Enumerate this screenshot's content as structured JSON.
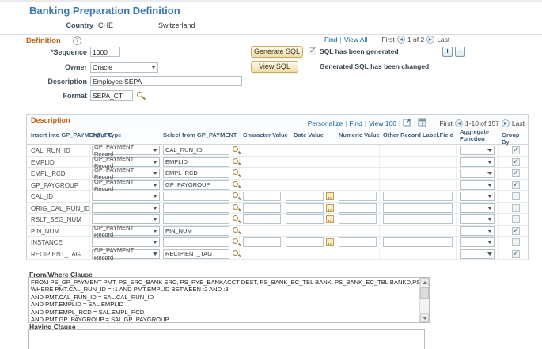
{
  "page": {
    "title": "Banking Preparation Definition"
  },
  "icons": {
    "help": "?",
    "add": "+",
    "remove": "−"
  },
  "separators": {
    "pipe": "|"
  },
  "country": {
    "label": "Country",
    "code": "CHE",
    "name": "Switzerland"
  },
  "definition": {
    "title": "Definition",
    "nav": {
      "find": "Find",
      "view_all": "View All",
      "first": "First",
      "position": "1 of 2",
      "last": "Last"
    },
    "sequence_label": "*Sequence",
    "sequence_value": "1000",
    "owner_label": "Owner",
    "owner_value": "Oracle",
    "description_label": "Description",
    "description_value": "Employee SEPA",
    "format_label": "Format",
    "format_value": "SEPA_CT",
    "generate_sql_button": "Generate SQL",
    "view_sql_button": "View SQL",
    "checkbox_sql_generated": {
      "label": "SQL has been generated",
      "checked": true
    },
    "checkbox_sql_changed": {
      "label": "Generated SQL has been changed",
      "checked": false
    }
  },
  "grid": {
    "tab": "Description",
    "toolbar": {
      "personalize": "Personalize",
      "find": "Find",
      "view": "View 100",
      "first": "First",
      "position": "1-10 of 157",
      "last": "Last"
    },
    "columns": [
      "Insert into GP_PAYMENT_FG",
      "Input Type",
      "Select from GP_PAYMENT",
      "Character Value",
      "Date Value",
      "Numeric Value",
      "Other Record Label.Field",
      "Aggregate Function",
      "Group By"
    ],
    "rows": [
      {
        "field": "CAL_RUN_ID",
        "input_type": "GP_PAYMENT Record",
        "select_from": "CAL_RUN_ID",
        "character_value": "",
        "date_value": "",
        "numeric_value": "",
        "other_record": "",
        "aggregate": "",
        "value_inputs": false,
        "group_by": true
      },
      {
        "field": "EMPLID",
        "input_type": "GP_PAYMENT Record",
        "select_from": "EMPLID",
        "character_value": "",
        "date_value": "",
        "numeric_value": "",
        "other_record": "",
        "aggregate": "",
        "value_inputs": false,
        "group_by": true
      },
      {
        "field": "EMPL_RCD",
        "input_type": "GP_PAYMENT Record",
        "select_from": "EMPL_RCD",
        "character_value": "",
        "date_value": "",
        "numeric_value": "",
        "other_record": "",
        "aggregate": "",
        "value_inputs": false,
        "group_by": true
      },
      {
        "field": "GP_PAYGROUP",
        "input_type": "GP_PAYMENT Record",
        "select_from": "GP_PAYGROUP",
        "character_value": "",
        "date_value": "",
        "numeric_value": "",
        "other_record": "",
        "aggregate": "",
        "value_inputs": false,
        "group_by": true
      },
      {
        "field": "CAL_ID",
        "input_type": "",
        "select_from": "",
        "character_value": "",
        "date_value": "",
        "numeric_value": "",
        "other_record": "",
        "aggregate": "",
        "value_inputs": true,
        "group_by": false
      },
      {
        "field": "ORIG_CAL_RUN_ID",
        "input_type": "",
        "select_from": "",
        "character_value": "",
        "date_value": "",
        "numeric_value": "",
        "other_record": "",
        "aggregate": "",
        "value_inputs": true,
        "group_by": false
      },
      {
        "field": "RSLT_SEG_NUM",
        "input_type": "",
        "select_from": "",
        "character_value": "",
        "date_value": "",
        "numeric_value": "",
        "other_record": "",
        "aggregate": "",
        "value_inputs": true,
        "group_by": false
      },
      {
        "field": "PIN_NUM",
        "input_type": "GP_PAYMENT Record",
        "select_from": "PIN_NUM",
        "character_value": "",
        "date_value": "",
        "numeric_value": "",
        "other_record": "",
        "aggregate": "",
        "value_inputs": false,
        "group_by": true
      },
      {
        "field": "INSTANCE",
        "input_type": "",
        "select_from": "",
        "character_value": "",
        "date_value": "",
        "numeric_value": "",
        "other_record": "",
        "aggregate": "",
        "value_inputs": true,
        "group_by": false
      },
      {
        "field": "RECIPIENT_TAG",
        "input_type": "GP_PAYMENT Record",
        "select_from": "RECIPIENT_TAG",
        "character_value": "",
        "date_value": "",
        "numeric_value": "",
        "other_record": "",
        "aggregate": "",
        "value_inputs": false,
        "group_by": true
      }
    ]
  },
  "from_where": {
    "label": "From/Where Clause",
    "text": "FROM PS_GP_PAYMENT PMT, PS_SRC_BANK SRC, PS_PYE_BANKACCT DEST, PS_BANK_EC_TBL BANK, PS_BANK_EC_TBL BANKD,PS_GPCH_SALARY_VW SAL\nWHERE PMT.CAL_RUN_ID = :1 AND PMT.EMPLID BETWEEN :2 AND :3\nAND PMT.CAL_RUN_ID = SAL.CAL_RUN_ID\nAND PMT.EMPLID = SAL.EMPLID\nAND PMT.EMPL_RCD = SAL.EMPL_RCD\nAND PMT.GP_PAYGROUP = SAL.GP_PAYGROUP"
  },
  "having": {
    "label": "Having Clause",
    "value": ""
  },
  "colors": {
    "accent_orange": "#bf6414",
    "link_blue": "#10669f",
    "title_blue": "#3877b4",
    "button_face": "#f2dda6"
  }
}
